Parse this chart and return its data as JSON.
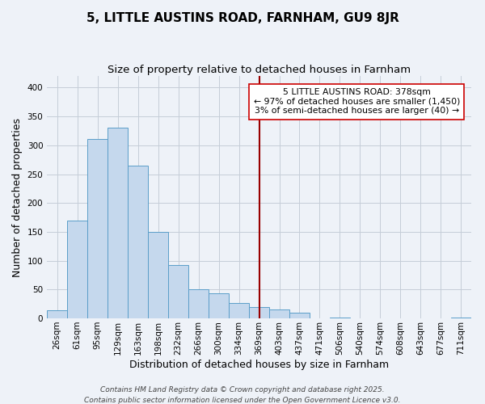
{
  "title": "5, LITTLE AUSTINS ROAD, FARNHAM, GU9 8JR",
  "subtitle": "Size of property relative to detached houses in Farnham",
  "xlabel": "Distribution of detached houses by size in Farnham",
  "ylabel": "Number of detached properties",
  "categories": [
    "26sqm",
    "61sqm",
    "95sqm",
    "129sqm",
    "163sqm",
    "198sqm",
    "232sqm",
    "266sqm",
    "300sqm",
    "334sqm",
    "369sqm",
    "403sqm",
    "437sqm",
    "471sqm",
    "506sqm",
    "540sqm",
    "574sqm",
    "608sqm",
    "643sqm",
    "677sqm",
    "711sqm"
  ],
  "values": [
    14,
    170,
    311,
    330,
    265,
    150,
    93,
    50,
    43,
    27,
    20,
    15,
    10,
    0,
    2,
    0,
    0,
    0,
    0,
    0,
    1
  ],
  "bar_color": "#c5d8ed",
  "bar_edge_color": "#5b9ec9",
  "vline_x_index": 10,
  "vline_color": "#990000",
  "annotation_title": "5 LITTLE AUSTINS ROAD: 378sqm",
  "annotation_line1": "← 97% of detached houses are smaller (1,450)",
  "annotation_line2": "3% of semi-detached houses are larger (40) →",
  "annotation_box_color": "#ffffff",
  "annotation_box_edge": "#cc0000",
  "footer1": "Contains HM Land Registry data © Crown copyright and database right 2025.",
  "footer2": "Contains public sector information licensed under the Open Government Licence v3.0.",
  "background_color": "#eef2f8",
  "grid_color": "#c5cdd8",
  "ylim": [
    0,
    420
  ],
  "yticks": [
    0,
    50,
    100,
    150,
    200,
    250,
    300,
    350,
    400
  ],
  "title_fontsize": 11,
  "subtitle_fontsize": 9.5,
  "xlabel_fontsize": 9,
  "ylabel_fontsize": 9,
  "tick_fontsize": 7.5,
  "footer_fontsize": 6.5
}
